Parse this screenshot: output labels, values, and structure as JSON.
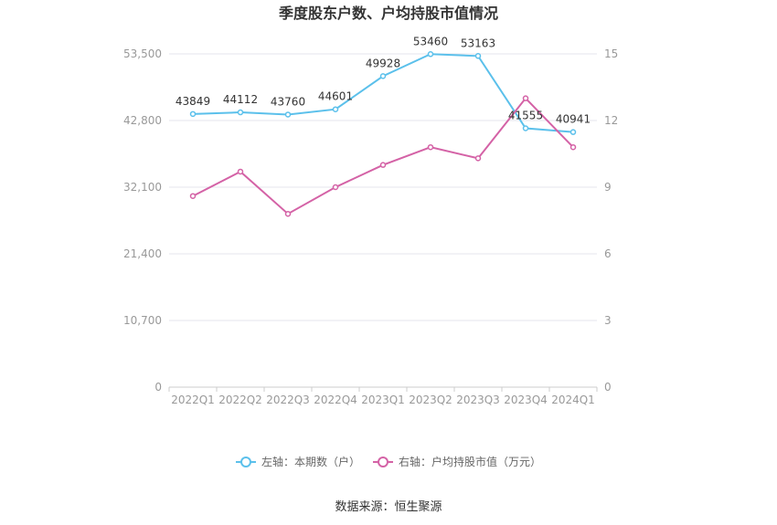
{
  "chart_data": {
    "type": "line",
    "title": "季度股东户数、户均持股市值情况",
    "categories": [
      "2022Q1",
      "2022Q2",
      "2022Q3",
      "2022Q4",
      "2023Q1",
      "2023Q2",
      "2023Q3",
      "2023Q4",
      "2024Q1"
    ],
    "series": [
      {
        "name": "左轴：本期数（户）",
        "axis": "left",
        "color": "#5bc0eb",
        "values": [
          43849,
          44112,
          43760,
          44601,
          49928,
          53460,
          53163,
          41555,
          40941
        ],
        "labels": [
          "43849",
          "44112",
          "43760",
          "44601",
          "49928",
          "53460",
          "53163",
          "41555",
          "40941"
        ]
      },
      {
        "name": "右轴：户均持股市值（万元）",
        "axis": "right",
        "color": "#d462a6",
        "values": [
          8.6,
          9.7,
          7.8,
          9.0,
          10.0,
          10.8,
          10.3,
          13.0,
          10.8
        ]
      }
    ],
    "y_left": {
      "ylim": [
        0,
        53500
      ],
      "ticks": [
        "0",
        "10,700",
        "21,400",
        "32,100",
        "42,800",
        "53,500"
      ]
    },
    "y_right": {
      "ylim": [
        0,
        15
      ],
      "ticks": [
        "0",
        "3",
        "6",
        "9",
        "12",
        "15"
      ]
    },
    "grid": true,
    "legend": "bottom-center"
  },
  "source": "数据来源：恒生聚源"
}
